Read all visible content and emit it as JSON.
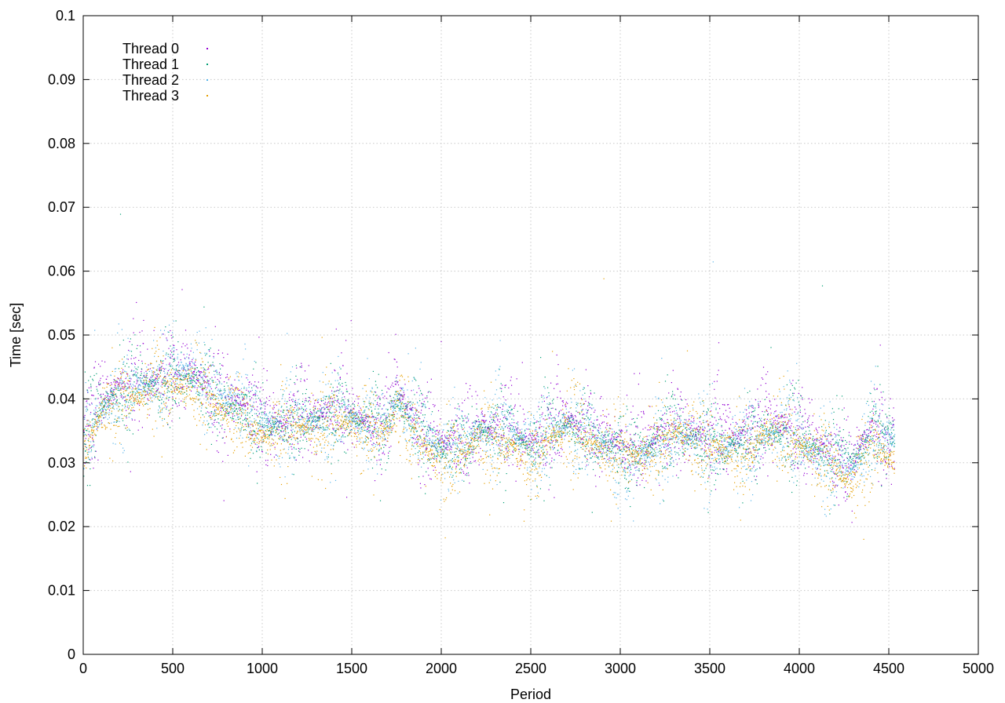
{
  "chart_data": {
    "type": "scatter",
    "title": "",
    "xlabel": "Period",
    "ylabel": "Time [sec]",
    "xlim": [
      0,
      5000
    ],
    "ylim": [
      0,
      0.1
    ],
    "x_ticks": [
      "0",
      "500",
      "1000",
      "1500",
      "2000",
      "2500",
      "3000",
      "3500",
      "4000",
      "4500",
      "5000"
    ],
    "y_ticks": [
      "0",
      "0.01",
      "0.02",
      "0.03",
      "0.04",
      "0.05",
      "0.06",
      "0.07",
      "0.08",
      "0.09",
      "0.1"
    ],
    "grid": true,
    "legend_position": "top-left",
    "x_range_of_points": [
      0,
      4530
    ],
    "series": [
      {
        "name": "Thread 0",
        "color": "#9400d3",
        "trend": [
          [
            0,
            0.036
          ],
          [
            100,
            0.04
          ],
          [
            200,
            0.042
          ],
          [
            300,
            0.043
          ],
          [
            400,
            0.043
          ],
          [
            500,
            0.044
          ],
          [
            600,
            0.044
          ],
          [
            700,
            0.042
          ],
          [
            800,
            0.04
          ],
          [
            900,
            0.039
          ],
          [
            1000,
            0.037
          ],
          [
            1100,
            0.036
          ],
          [
            1200,
            0.038
          ],
          [
            1300,
            0.037
          ],
          [
            1400,
            0.039
          ],
          [
            1500,
            0.037
          ],
          [
            1600,
            0.036
          ],
          [
            1700,
            0.037
          ],
          [
            1750,
            0.042
          ],
          [
            1800,
            0.039
          ],
          [
            1900,
            0.035
          ],
          [
            2000,
            0.033
          ],
          [
            2100,
            0.034
          ],
          [
            2200,
            0.036
          ],
          [
            2300,
            0.035
          ],
          [
            2400,
            0.036
          ],
          [
            2500,
            0.033
          ],
          [
            2600,
            0.036
          ],
          [
            2700,
            0.037
          ],
          [
            2800,
            0.036
          ],
          [
            2900,
            0.034
          ],
          [
            3000,
            0.033
          ],
          [
            3100,
            0.032
          ],
          [
            3200,
            0.034
          ],
          [
            3300,
            0.036
          ],
          [
            3400,
            0.035
          ],
          [
            3500,
            0.034
          ],
          [
            3600,
            0.034
          ],
          [
            3700,
            0.035
          ],
          [
            3800,
            0.036
          ],
          [
            3900,
            0.036
          ],
          [
            4000,
            0.035
          ],
          [
            4100,
            0.033
          ],
          [
            4200,
            0.032
          ],
          [
            4300,
            0.031
          ],
          [
            4400,
            0.036
          ],
          [
            4530,
            0.035
          ]
        ],
        "spread": 0.0045
      },
      {
        "name": "Thread 1",
        "color": "#009e73",
        "trend": [
          [
            0,
            0.034
          ],
          [
            100,
            0.039
          ],
          [
            200,
            0.041
          ],
          [
            300,
            0.042
          ],
          [
            400,
            0.042
          ],
          [
            500,
            0.043
          ],
          [
            600,
            0.043
          ],
          [
            700,
            0.041
          ],
          [
            800,
            0.039
          ],
          [
            900,
            0.038
          ],
          [
            1000,
            0.036
          ],
          [
            1100,
            0.036
          ],
          [
            1200,
            0.037
          ],
          [
            1300,
            0.037
          ],
          [
            1400,
            0.038
          ],
          [
            1500,
            0.037
          ],
          [
            1600,
            0.036
          ],
          [
            1700,
            0.036
          ],
          [
            1750,
            0.04
          ],
          [
            1800,
            0.038
          ],
          [
            1900,
            0.035
          ],
          [
            2000,
            0.032
          ],
          [
            2100,
            0.033
          ],
          [
            2200,
            0.035
          ],
          [
            2300,
            0.035
          ],
          [
            2400,
            0.035
          ],
          [
            2500,
            0.032
          ],
          [
            2600,
            0.035
          ],
          [
            2700,
            0.036
          ],
          [
            2800,
            0.035
          ],
          [
            2900,
            0.033
          ],
          [
            3000,
            0.032
          ],
          [
            3100,
            0.032
          ],
          [
            3200,
            0.033
          ],
          [
            3300,
            0.035
          ],
          [
            3400,
            0.034
          ],
          [
            3500,
            0.033
          ],
          [
            3600,
            0.033
          ],
          [
            3700,
            0.034
          ],
          [
            3800,
            0.035
          ],
          [
            3900,
            0.035
          ],
          [
            4000,
            0.034
          ],
          [
            4100,
            0.032
          ],
          [
            4200,
            0.031
          ],
          [
            4300,
            0.03
          ],
          [
            4400,
            0.035
          ],
          [
            4530,
            0.034
          ]
        ],
        "spread": 0.004
      },
      {
        "name": "Thread 2",
        "color": "#56b4e9",
        "trend": [
          [
            0,
            0.033
          ],
          [
            100,
            0.038
          ],
          [
            200,
            0.041
          ],
          [
            300,
            0.042
          ],
          [
            400,
            0.043
          ],
          [
            500,
            0.045
          ],
          [
            600,
            0.045
          ],
          [
            700,
            0.042
          ],
          [
            800,
            0.04
          ],
          [
            900,
            0.039
          ],
          [
            1000,
            0.036
          ],
          [
            1100,
            0.036
          ],
          [
            1200,
            0.037
          ],
          [
            1300,
            0.036
          ],
          [
            1400,
            0.038
          ],
          [
            1500,
            0.037
          ],
          [
            1600,
            0.036
          ],
          [
            1700,
            0.036
          ],
          [
            1750,
            0.04
          ],
          [
            1800,
            0.038
          ],
          [
            1900,
            0.035
          ],
          [
            2000,
            0.032
          ],
          [
            2100,
            0.033
          ],
          [
            2200,
            0.035
          ],
          [
            2300,
            0.035
          ],
          [
            2400,
            0.035
          ],
          [
            2500,
            0.033
          ],
          [
            2600,
            0.034
          ],
          [
            2700,
            0.036
          ],
          [
            2800,
            0.035
          ],
          [
            2900,
            0.033
          ],
          [
            3000,
            0.031
          ],
          [
            3100,
            0.031
          ],
          [
            3200,
            0.033
          ],
          [
            3300,
            0.035
          ],
          [
            3400,
            0.034
          ],
          [
            3500,
            0.033
          ],
          [
            3600,
            0.032
          ],
          [
            3700,
            0.033
          ],
          [
            3800,
            0.034
          ],
          [
            3900,
            0.035
          ],
          [
            4000,
            0.033
          ],
          [
            4100,
            0.031
          ],
          [
            4200,
            0.03
          ],
          [
            4300,
            0.029
          ],
          [
            4400,
            0.035
          ],
          [
            4530,
            0.034
          ]
        ],
        "spread": 0.0045
      },
      {
        "name": "Thread 3",
        "color": "#e69f00",
        "trend": [
          [
            0,
            0.032
          ],
          [
            100,
            0.038
          ],
          [
            200,
            0.04
          ],
          [
            300,
            0.04
          ],
          [
            400,
            0.042
          ],
          [
            500,
            0.042
          ],
          [
            600,
            0.042
          ],
          [
            700,
            0.04
          ],
          [
            800,
            0.038
          ],
          [
            900,
            0.037
          ],
          [
            1000,
            0.034
          ],
          [
            1100,
            0.035
          ],
          [
            1200,
            0.036
          ],
          [
            1300,
            0.035
          ],
          [
            1400,
            0.037
          ],
          [
            1500,
            0.036
          ],
          [
            1600,
            0.035
          ],
          [
            1700,
            0.035
          ],
          [
            1750,
            0.038
          ],
          [
            1800,
            0.037
          ],
          [
            1900,
            0.033
          ],
          [
            2000,
            0.029
          ],
          [
            2100,
            0.031
          ],
          [
            2200,
            0.034
          ],
          [
            2300,
            0.033
          ],
          [
            2400,
            0.033
          ],
          [
            2500,
            0.03
          ],
          [
            2600,
            0.034
          ],
          [
            2700,
            0.036
          ],
          [
            2800,
            0.034
          ],
          [
            2900,
            0.032
          ],
          [
            3000,
            0.031
          ],
          [
            3100,
            0.031
          ],
          [
            3200,
            0.032
          ],
          [
            3300,
            0.035
          ],
          [
            3400,
            0.033
          ],
          [
            3500,
            0.033
          ],
          [
            3600,
            0.032
          ],
          [
            3700,
            0.031
          ],
          [
            3800,
            0.035
          ],
          [
            3900,
            0.035
          ],
          [
            4000,
            0.033
          ],
          [
            4100,
            0.031
          ],
          [
            4200,
            0.029
          ],
          [
            4300,
            0.026
          ],
          [
            4400,
            0.033
          ],
          [
            4530,
            0.03
          ]
        ],
        "spread": 0.004
      }
    ]
  }
}
